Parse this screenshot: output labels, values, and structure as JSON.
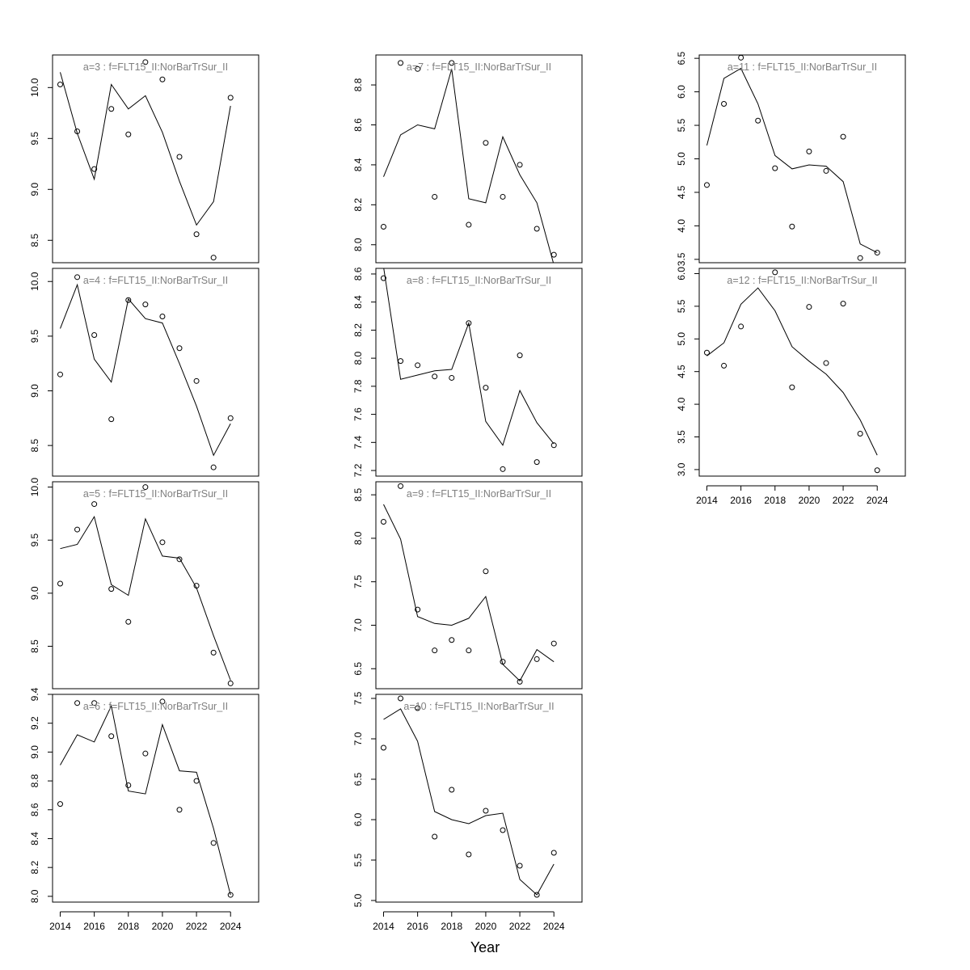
{
  "page": {
    "xlabel": "Year"
  },
  "chart_data": [
    {
      "type": "line",
      "title": "a=3  :  f=FLT15_II:NorBarTrSur_II",
      "x": [
        2014,
        2015,
        2016,
        2017,
        2018,
        2019,
        2020,
        2021,
        2022,
        2023,
        2024
      ],
      "series": [
        {
          "kind": "line",
          "values": [
            10.15,
            9.55,
            9.1,
            10.03,
            9.79,
            9.92,
            9.56,
            9.08,
            8.65,
            8.88,
            9.82
          ]
        },
        {
          "kind": "points",
          "values": [
            10.03,
            9.57,
            9.2,
            9.79,
            9.54,
            10.25,
            10.08,
            9.32,
            8.56,
            8.33,
            9.9
          ]
        }
      ],
      "yticks": [
        8.5,
        9.0,
        9.5,
        10.0
      ],
      "yticklabels": [
        "8.5",
        "9.0",
        "9.5",
        "10.0"
      ],
      "ylim": [
        8.28,
        10.32
      ],
      "show_xaxis": false
    },
    {
      "type": "line",
      "title": "a=4  :  f=FLT15_II:NorBarTrSur_II",
      "x": [
        2014,
        2015,
        2016,
        2017,
        2018,
        2019,
        2020,
        2021,
        2022,
        2023,
        2024
      ],
      "series": [
        {
          "kind": "line",
          "values": [
            9.57,
            9.97,
            9.29,
            9.08,
            9.84,
            9.66,
            9.62,
            9.25,
            8.86,
            8.41,
            8.7
          ]
        },
        {
          "kind": "points",
          "values": [
            9.15,
            10.04,
            9.51,
            8.74,
            9.83,
            9.79,
            9.68,
            9.39,
            9.09,
            8.3,
            8.75
          ]
        }
      ],
      "yticks": [
        8.5,
        9.0,
        9.5,
        10.0
      ],
      "yticklabels": [
        "8.5",
        "9.0",
        "9.5",
        "10.0"
      ],
      "ylim": [
        8.22,
        10.12
      ],
      "show_xaxis": false
    },
    {
      "type": "line",
      "title": "a=5  :  f=FLT15_II:NorBarTrSur_II",
      "x": [
        2014,
        2015,
        2016,
        2017,
        2018,
        2019,
        2020,
        2021,
        2022,
        2023,
        2024
      ],
      "series": [
        {
          "kind": "line",
          "values": [
            9.42,
            9.46,
            9.72,
            9.08,
            8.98,
            9.7,
            9.35,
            9.33,
            9.05,
            8.6,
            8.18
          ]
        },
        {
          "kind": "points",
          "values": [
            9.09,
            9.6,
            9.84,
            9.04,
            8.73,
            10.0,
            9.48,
            9.32,
            9.07,
            8.44,
            8.15
          ]
        }
      ],
      "yticks": [
        8.5,
        9.0,
        9.5,
        10.0
      ],
      "yticklabels": [
        "8.5",
        "9.0",
        "9.5",
        "10.0"
      ],
      "ylim": [
        8.1,
        10.05
      ],
      "show_xaxis": false
    },
    {
      "type": "line",
      "title": "a=6  :  f=FLT15_II:NorBarTrSur_II",
      "x": [
        2014,
        2015,
        2016,
        2017,
        2018,
        2019,
        2020,
        2021,
        2022,
        2023,
        2024
      ],
      "series": [
        {
          "kind": "line",
          "values": [
            8.91,
            9.12,
            9.07,
            9.32,
            8.73,
            8.71,
            9.19,
            8.87,
            8.86,
            8.47,
            8.01
          ]
        },
        {
          "kind": "points",
          "values": [
            8.64,
            9.34,
            9.34,
            9.11,
            8.77,
            8.99,
            9.35,
            8.6,
            8.8,
            8.37,
            8.01
          ]
        }
      ],
      "yticks": [
        8.0,
        8.2,
        8.4,
        8.6,
        8.8,
        9.0,
        9.2,
        9.4
      ],
      "yticklabels": [
        "8.0",
        "8.2",
        "8.4",
        "8.6",
        "8.8",
        "9.0",
        "9.2",
        "9.4"
      ],
      "ylim": [
        7.96,
        9.4
      ],
      "show_xaxis": true
    },
    {
      "type": "line",
      "title": "a=7  :  f=FLT15_II:NorBarTrSur_II",
      "x": [
        2014,
        2015,
        2016,
        2017,
        2018,
        2019,
        2020,
        2021,
        2022,
        2023,
        2024
      ],
      "series": [
        {
          "kind": "line",
          "values": [
            8.34,
            8.55,
            8.6,
            8.58,
            8.88,
            8.23,
            8.21,
            8.54,
            8.35,
            8.21,
            7.9
          ]
        },
        {
          "kind": "points",
          "values": [
            8.09,
            8.91,
            8.88,
            8.24,
            8.91,
            8.1,
            8.51,
            8.24,
            8.4,
            8.08,
            7.95
          ]
        }
      ],
      "yticks": [
        8.0,
        8.2,
        8.4,
        8.6,
        8.8
      ],
      "yticklabels": [
        "8.0",
        "8.2",
        "8.4",
        "8.6",
        "8.8"
      ],
      "ylim": [
        7.91,
        8.95
      ],
      "show_xaxis": false
    },
    {
      "type": "line",
      "title": "a=8  :  f=FLT15_II:NorBarTrSur_II",
      "x": [
        2014,
        2015,
        2016,
        2017,
        2018,
        2019,
        2020,
        2021,
        2022,
        2023,
        2024
      ],
      "series": [
        {
          "kind": "line",
          "values": [
            8.65,
            7.85,
            7.88,
            7.91,
            7.92,
            8.25,
            7.55,
            7.38,
            7.77,
            7.54,
            7.39
          ]
        },
        {
          "kind": "points",
          "values": [
            8.57,
            7.98,
            7.95,
            7.87,
            7.86,
            8.25,
            7.79,
            7.21,
            8.02,
            7.26,
            7.38
          ]
        }
      ],
      "yticks": [
        7.2,
        7.4,
        7.6,
        7.8,
        8.0,
        8.2,
        8.4,
        8.6
      ],
      "yticklabels": [
        "7.2",
        "7.4",
        "7.6",
        "7.8",
        "8.0",
        "8.2",
        "8.4",
        "8.6"
      ],
      "ylim": [
        7.16,
        8.64
      ],
      "show_xaxis": false
    },
    {
      "type": "line",
      "title": "a=9  :  f=FLT15_II:NorBarTrSur_II",
      "x": [
        2014,
        2015,
        2016,
        2017,
        2018,
        2019,
        2020,
        2021,
        2022,
        2023,
        2024
      ],
      "series": [
        {
          "kind": "line",
          "values": [
            8.39,
            7.99,
            7.1,
            7.02,
            7.0,
            7.08,
            7.33,
            6.55,
            6.36,
            6.72,
            6.58
          ]
        },
        {
          "kind": "points",
          "values": [
            8.19,
            8.6,
            7.18,
            6.71,
            6.83,
            6.71,
            7.62,
            6.58,
            6.35,
            6.61,
            6.79
          ]
        }
      ],
      "yticks": [
        6.5,
        7.0,
        7.5,
        8.0,
        8.5
      ],
      "yticklabels": [
        "6.5",
        "7.0",
        "7.5",
        "8.0",
        "8.5"
      ],
      "ylim": [
        6.27,
        8.65
      ],
      "show_xaxis": false
    },
    {
      "type": "line",
      "title": "a=10  :  f=FLT15_II:NorBarTrSur_II",
      "x": [
        2014,
        2015,
        2016,
        2017,
        2018,
        2019,
        2020,
        2021,
        2022,
        2023,
        2024
      ],
      "series": [
        {
          "kind": "line",
          "values": [
            7.24,
            7.37,
            6.97,
            6.1,
            6.0,
            5.95,
            6.05,
            6.08,
            5.26,
            5.07,
            5.45
          ]
        },
        {
          "kind": "points",
          "values": [
            6.89,
            7.5,
            7.38,
            5.79,
            6.37,
            5.57,
            6.11,
            5.87,
            5.43,
            5.07,
            5.59
          ]
        }
      ],
      "yticks": [
        5.0,
        5.5,
        6.0,
        6.5,
        7.0,
        7.5
      ],
      "yticklabels": [
        "5.0",
        "5.5",
        "6.0",
        "6.5",
        "7.0",
        "7.5"
      ],
      "ylim": [
        4.98,
        7.55
      ],
      "show_xaxis": true
    },
    {
      "type": "line",
      "title": "a=11  :  f=FLT15_II:NorBarTrSur_II",
      "x": [
        2014,
        2015,
        2016,
        2017,
        2018,
        2019,
        2020,
        2021,
        2022,
        2023,
        2024
      ],
      "series": [
        {
          "kind": "line",
          "values": [
            5.2,
            6.2,
            6.35,
            5.82,
            5.05,
            4.85,
            4.91,
            4.89,
            4.66,
            3.73,
            3.6
          ]
        },
        {
          "kind": "points",
          "values": [
            4.61,
            5.82,
            6.51,
            5.57,
            4.86,
            3.99,
            5.11,
            4.82,
            5.33,
            3.52,
            3.6
          ]
        }
      ],
      "yticks": [
        3.5,
        4.0,
        4.5,
        5.0,
        5.5,
        6.0,
        6.5
      ],
      "yticklabels": [
        "3.5",
        "4.0",
        "4.5",
        "5.0",
        "5.5",
        "6.0",
        "6.5"
      ],
      "ylim": [
        3.45,
        6.55
      ],
      "show_xaxis": false
    },
    {
      "type": "line",
      "title": "a=12  :  f=FLT15_II:NorBarTrSur_II",
      "x": [
        2014,
        2015,
        2016,
        2017,
        2018,
        2019,
        2020,
        2021,
        2022,
        2023,
        2024
      ],
      "series": [
        {
          "kind": "line",
          "values": [
            4.74,
            4.94,
            5.53,
            5.78,
            5.43,
            4.88,
            4.66,
            4.46,
            4.18,
            3.76,
            3.22
          ]
        },
        {
          "kind": "points",
          "values": [
            4.79,
            4.59,
            5.19,
            6.12,
            6.02,
            4.26,
            5.49,
            4.63,
            5.54,
            3.55,
            2.99
          ]
        }
      ],
      "yticks": [
        3.0,
        3.5,
        4.0,
        4.5,
        5.0,
        5.5,
        6.0
      ],
      "yticklabels": [
        "3.0",
        "3.5",
        "4.0",
        "4.5",
        "5.0",
        "5.5",
        "6.0"
      ],
      "ylim": [
        2.9,
        6.08
      ],
      "show_xaxis": true
    }
  ]
}
